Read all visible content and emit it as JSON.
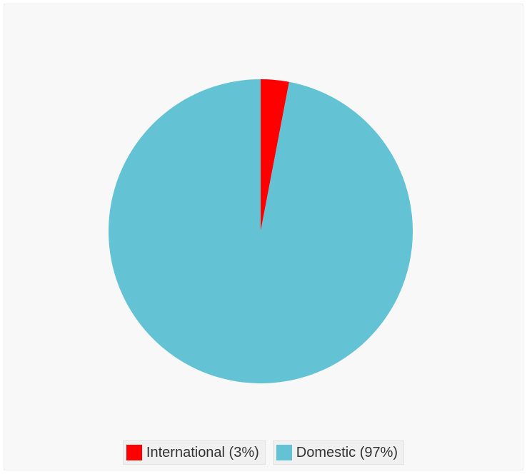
{
  "chart_data": {
    "type": "pie",
    "title": "",
    "legend_position": "bottom-center",
    "start_angle": "top",
    "direction": "clockwise",
    "slices": [
      {
        "label": "International (3%)",
        "name": "International",
        "value": 3,
        "color": "#ff0000"
      },
      {
        "label": "Domestic (97%)",
        "name": "Domestic",
        "value": 97,
        "color": "#63c3d4"
      }
    ]
  }
}
